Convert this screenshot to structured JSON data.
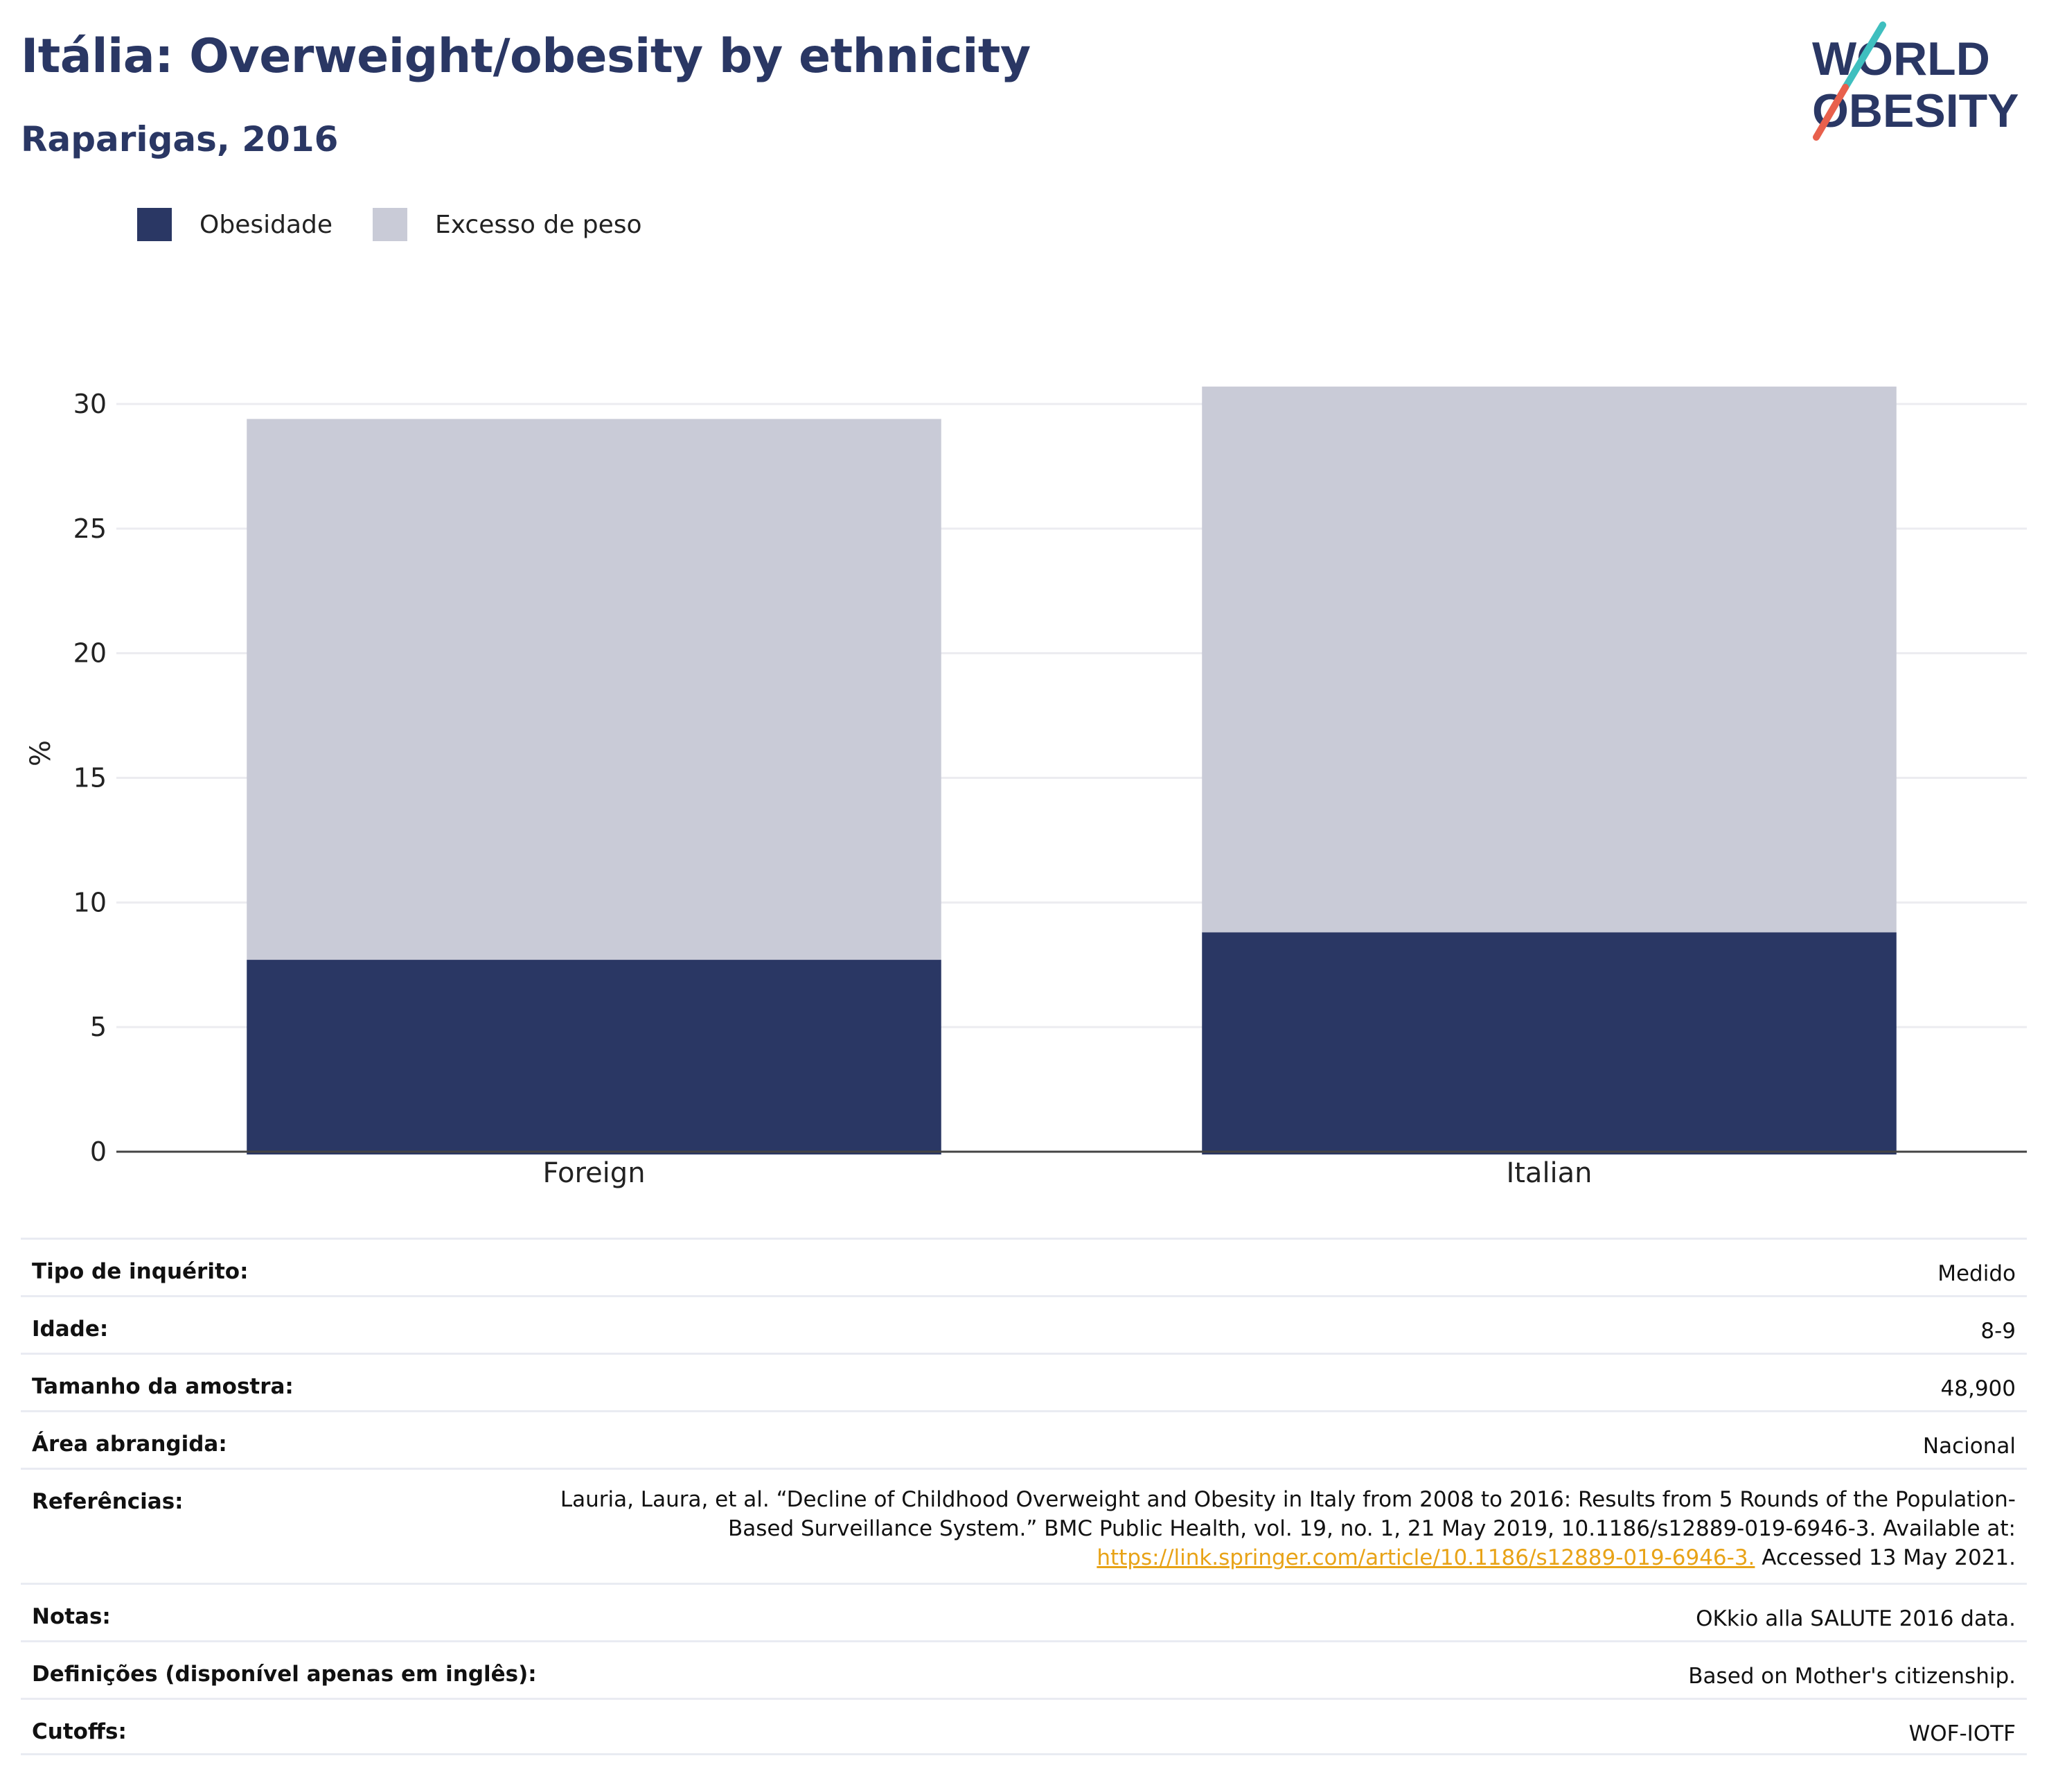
{
  "header": {
    "title": "Itália: Overweight/obesity by ethnicity",
    "subtitle": "Raparigas, 2016"
  },
  "logo": {
    "line1": "WORLD",
    "line2": "OBESITY",
    "colors": {
      "text": "#2a3764",
      "slash_top": "#3fbfbf",
      "slash_bottom": "#e8604c"
    }
  },
  "legend": [
    {
      "label": "Obesidade",
      "color": "#2a3764"
    },
    {
      "label": "Excesso de peso",
      "color": "#c9cbd7"
    }
  ],
  "chart_data": {
    "type": "bar",
    "stacked": true,
    "categories": [
      "Foreign",
      "Italian"
    ],
    "series": [
      {
        "name": "Obesidade",
        "color": "#2a3764",
        "values": [
          7.7,
          8.8
        ]
      },
      {
        "name": "Excesso de peso",
        "color": "#c9cbd7",
        "values": [
          21.7,
          21.9
        ]
      }
    ],
    "title": "Itália: Overweight/obesity by ethnicity",
    "subtitle": "Raparigas, 2016",
    "xlabel": "",
    "ylabel": "%",
    "ylim": [
      0,
      30
    ],
    "yticks": [
      0,
      5,
      10,
      15,
      20,
      25,
      30
    ],
    "grid": true,
    "legend_position": "top-left"
  },
  "info_table": [
    {
      "label": "Tipo de inquérito:",
      "value": "Medido"
    },
    {
      "label": "Idade:",
      "value": "8-9"
    },
    {
      "label": "Tamanho da amostra:",
      "value": "48,900"
    },
    {
      "label": "Área abrangida:",
      "value": "Nacional"
    },
    {
      "label": "Notas:",
      "value": "OKkio alla SALUTE 2016 data."
    },
    {
      "label": "Definições (disponível apenas em inglês):",
      "value": "Based on Mother's citizenship."
    },
    {
      "label": "Cutoffs:",
      "value": "WOF-IOTF"
    }
  ],
  "references": {
    "label": "Referências:",
    "text_line1": "Lauria, Laura, et al. “Decline of Childhood Overweight and Obesity in Italy from 2008 to 2016: Results from 5 Rounds of the Population-",
    "text_line2": "Based Surveillance System.” BMC Public Health, vol. 19, no. 1, 21 May 2019, 10.1186/s12889-019-6946-3. Available at:",
    "link": "https://link.springer.com/article/10.1186/s12889-019-6946-3.",
    "after_link": " Accessed 13 May 2021."
  }
}
